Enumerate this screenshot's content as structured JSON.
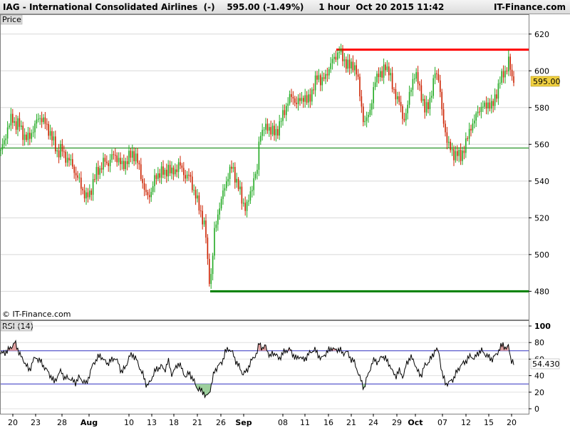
{
  "header": {
    "title": "IAG - International Consolidated Airlines  (-)    595.00 (-1.49%)     1 hour  Oct 20 2015 11:42",
    "brand": "IT-Finance.com"
  },
  "chart_data": [
    {
      "type": "candlestick",
      "panel_label": "Price",
      "copyright": "© IT-Finance.com",
      "ylim": [
        465,
        630
      ],
      "y_ticks": [
        480,
        500,
        520,
        540,
        560,
        580,
        600,
        620
      ],
      "last_price_label": "595.00",
      "horizontal_lines": [
        {
          "name": "resistance",
          "value": 611.5,
          "color": "#ff0000"
        },
        {
          "name": "support",
          "value": 558,
          "color": "#008000"
        },
        {
          "name": "low",
          "value": 480,
          "color": "#008000"
        }
      ],
      "colors": {
        "up": "#22aa22",
        "down": "#cc2200"
      },
      "path_points": [
        [
          0,
          557
        ],
        [
          5,
          561
        ],
        [
          10,
          570
        ],
        [
          15,
          574
        ],
        [
          20,
          571
        ],
        [
          25,
          572
        ],
        [
          30,
          566
        ],
        [
          35,
          564
        ],
        [
          40,
          563
        ],
        [
          45,
          568
        ],
        [
          50,
          572
        ],
        [
          55,
          575
        ],
        [
          60,
          573
        ],
        [
          65,
          569
        ],
        [
          70,
          566
        ],
        [
          75,
          560
        ],
        [
          80,
          555
        ],
        [
          85,
          558
        ],
        [
          90,
          553
        ],
        [
          95,
          552
        ],
        [
          100,
          549
        ],
        [
          105,
          544
        ],
        [
          110,
          540
        ],
        [
          115,
          535
        ],
        [
          120,
          531
        ],
        [
          125,
          533
        ],
        [
          130,
          540
        ],
        [
          135,
          545
        ],
        [
          140,
          547
        ],
        [
          145,
          551
        ],
        [
          150,
          549
        ],
        [
          155,
          553
        ],
        [
          160,
          554
        ],
        [
          165,
          552
        ],
        [
          170,
          548
        ],
        [
          175,
          550
        ],
        [
          180,
          553
        ],
        [
          185,
          555
        ],
        [
          190,
          553
        ],
        [
          195,
          546
        ],
        [
          200,
          538
        ],
        [
          205,
          531
        ],
        [
          210,
          533
        ],
        [
          215,
          540
        ],
        [
          220,
          543
        ],
        [
          225,
          546
        ],
        [
          230,
          543
        ],
        [
          235,
          548
        ],
        [
          240,
          544
        ],
        [
          245,
          546
        ],
        [
          250,
          549
        ],
        [
          255,
          546
        ],
        [
          260,
          542
        ],
        [
          265,
          543
        ],
        [
          270,
          536
        ],
        [
          275,
          530
        ],
        [
          280,
          524
        ],
        [
          285,
          517
        ],
        [
          288,
          510
        ],
        [
          290,
          497
        ],
        [
          294,
          483
        ],
        [
          297,
          497
        ],
        [
          300,
          512
        ],
        [
          305,
          523
        ],
        [
          310,
          530
        ],
        [
          315,
          538
        ],
        [
          320,
          544
        ],
        [
          325,
          548
        ],
        [
          330,
          541
        ],
        [
          335,
          535
        ],
        [
          340,
          528
        ],
        [
          345,
          525
        ],
        [
          350,
          533
        ],
        [
          355,
          541
        ],
        [
          360,
          545
        ],
        [
          363,
          566
        ],
        [
          370,
          568
        ],
        [
          375,
          570
        ],
        [
          380,
          567
        ],
        [
          385,
          566
        ],
        [
          390,
          569
        ],
        [
          395,
          575
        ],
        [
          400,
          580
        ],
        [
          405,
          585
        ],
        [
          410,
          586
        ],
        [
          415,
          582
        ],
        [
          420,
          584
        ],
        [
          425,
          586
        ],
        [
          430,
          583
        ],
        [
          435,
          587
        ],
        [
          440,
          592
        ],
        [
          445,
          598
        ],
        [
          450,
          594
        ],
        [
          455,
          596
        ],
        [
          460,
          601
        ],
        [
          465,
          605
        ],
        [
          470,
          608
        ],
        [
          475,
          611
        ],
        [
          480,
          607
        ],
        [
          485,
          604
        ],
        [
          490,
          602
        ],
        [
          495,
          604
        ],
        [
          500,
          598
        ],
        [
          505,
          585
        ],
        [
          510,
          570
        ],
        [
          515,
          575
        ],
        [
          520,
          582
        ],
        [
          525,
          593
        ],
        [
          530,
          600
        ],
        [
          535,
          597
        ],
        [
          540,
          603
        ],
        [
          545,
          600
        ],
        [
          550,
          590
        ],
        [
          555,
          587
        ],
        [
          560,
          582
        ],
        [
          565,
          573
        ],
        [
          570,
          578
        ],
        [
          575,
          590
        ],
        [
          580,
          598
        ],
        [
          585,
          595
        ],
        [
          590,
          588
        ],
        [
          595,
          578
        ],
        [
          600,
          582
        ],
        [
          605,
          588
        ],
        [
          610,
          600
        ],
        [
          615,
          596
        ],
        [
          620,
          574
        ],
        [
          625,
          565
        ],
        [
          630,
          558
        ],
        [
          635,
          554
        ],
        [
          640,
          556
        ],
        [
          645,
          552
        ],
        [
          650,
          558
        ],
        [
          655,
          563
        ],
        [
          660,
          570
        ],
        [
          665,
          573
        ],
        [
          670,
          578
        ],
        [
          675,
          581
        ],
        [
          680,
          580
        ],
        [
          685,
          583
        ],
        [
          690,
          580
        ],
        [
          695,
          587
        ],
        [
          700,
          594
        ],
        [
          705,
          598
        ],
        [
          710,
          601
        ],
        [
          713,
          606
        ],
        [
          716,
          598
        ],
        [
          720,
          595
        ]
      ]
    },
    {
      "type": "line",
      "panel_label": "RSI (14)",
      "ylim": [
        0,
        100
      ],
      "y_ticks": [
        0,
        20,
        40,
        60,
        80,
        100
      ],
      "reference_lines": [
        30,
        70
      ],
      "last_value_label": "54.430",
      "path_points": [
        [
          0,
          66
        ],
        [
          5,
          68
        ],
        [
          10,
          70
        ],
        [
          15,
          75
        ],
        [
          20,
          80
        ],
        [
          25,
          70
        ],
        [
          30,
          60
        ],
        [
          35,
          55
        ],
        [
          40,
          45
        ],
        [
          45,
          58
        ],
        [
          50,
          62
        ],
        [
          55,
          58
        ],
        [
          60,
          52
        ],
        [
          65,
          46
        ],
        [
          70,
          40
        ],
        [
          75,
          32
        ],
        [
          80,
          40
        ],
        [
          85,
          46
        ],
        [
          90,
          36
        ],
        [
          95,
          38
        ],
        [
          100,
          34
        ],
        [
          105,
          32
        ],
        [
          110,
          38
        ],
        [
          115,
          34
        ],
        [
          120,
          30
        ],
        [
          125,
          42
        ],
        [
          130,
          55
        ],
        [
          135,
          60
        ],
        [
          140,
          65
        ],
        [
          145,
          58
        ],
        [
          150,
          55
        ],
        [
          155,
          58
        ],
        [
          160,
          62
        ],
        [
          165,
          55
        ],
        [
          170,
          44
        ],
        [
          175,
          50
        ],
        [
          180,
          62
        ],
        [
          185,
          66
        ],
        [
          190,
          60
        ],
        [
          195,
          50
        ],
        [
          200,
          40
        ],
        [
          205,
          28
        ],
        [
          210,
          32
        ],
        [
          215,
          44
        ],
        [
          220,
          48
        ],
        [
          225,
          52
        ],
        [
          230,
          46
        ],
        [
          235,
          58
        ],
        [
          240,
          42
        ],
        [
          245,
          48
        ],
        [
          250,
          56
        ],
        [
          255,
          46
        ],
        [
          260,
          38
        ],
        [
          265,
          44
        ],
        [
          270,
          35
        ],
        [
          275,
          26
        ],
        [
          280,
          22
        ],
        [
          285,
          20
        ],
        [
          288,
          14
        ],
        [
          292,
          18
        ],
        [
          296,
          30
        ],
        [
          300,
          45
        ],
        [
          305,
          52
        ],
        [
          310,
          55
        ],
        [
          315,
          68
        ],
        [
          320,
          73
        ],
        [
          325,
          68
        ],
        [
          330,
          58
        ],
        [
          335,
          50
        ],
        [
          340,
          42
        ],
        [
          345,
          45
        ],
        [
          350,
          55
        ],
        [
          355,
          62
        ],
        [
          360,
          68
        ],
        [
          363,
          80
        ],
        [
          368,
          72
        ],
        [
          372,
          76
        ],
        [
          378,
          62
        ],
        [
          382,
          68
        ],
        [
          386,
          66
        ],
        [
          390,
          60
        ],
        [
          395,
          66
        ],
        [
          400,
          70
        ],
        [
          405,
          72
        ],
        [
          410,
          66
        ],
        [
          415,
          60
        ],
        [
          420,
          64
        ],
        [
          425,
          58
        ],
        [
          430,
          64
        ],
        [
          435,
          68
        ],
        [
          440,
          72
        ],
        [
          445,
          66
        ],
        [
          450,
          60
        ],
        [
          455,
          66
        ],
        [
          460,
          70
        ],
        [
          465,
          74
        ],
        [
          470,
          70
        ],
        [
          475,
          73
        ],
        [
          480,
          66
        ],
        [
          485,
          70
        ],
        [
          490,
          62
        ],
        [
          495,
          58
        ],
        [
          500,
          48
        ],
        [
          505,
          35
        ],
        [
          510,
          25
        ],
        [
          515,
          40
        ],
        [
          520,
          52
        ],
        [
          525,
          60
        ],
        [
          530,
          55
        ],
        [
          535,
          65
        ],
        [
          540,
          60
        ],
        [
          545,
          55
        ],
        [
          550,
          44
        ],
        [
          555,
          40
        ],
        [
          560,
          46
        ],
        [
          565,
          38
        ],
        [
          570,
          56
        ],
        [
          575,
          62
        ],
        [
          580,
          58
        ],
        [
          585,
          45
        ],
        [
          590,
          40
        ],
        [
          595,
          52
        ],
        [
          600,
          56
        ],
        [
          605,
          62
        ],
        [
          610,
          72
        ],
        [
          615,
          68
        ],
        [
          620,
          40
        ],
        [
          625,
          30
        ],
        [
          630,
          32
        ],
        [
          635,
          36
        ],
        [
          640,
          44
        ],
        [
          645,
          52
        ],
        [
          650,
          55
        ],
        [
          655,
          60
        ],
        [
          660,
          64
        ],
        [
          665,
          60
        ],
        [
          670,
          68
        ],
        [
          675,
          70
        ],
        [
          680,
          66
        ],
        [
          685,
          62
        ],
        [
          690,
          60
        ],
        [
          695,
          65
        ],
        [
          700,
          72
        ],
        [
          705,
          78
        ],
        [
          710,
          72
        ],
        [
          713,
          76
        ],
        [
          716,
          60
        ],
        [
          720,
          54
        ]
      ]
    }
  ],
  "x_axis": {
    "labels": [
      {
        "text": "20",
        "pos": 18,
        "bold": false
      },
      {
        "text": "23",
        "pos": 50,
        "bold": false
      },
      {
        "text": "28",
        "pos": 87,
        "bold": false
      },
      {
        "text": "Aug",
        "pos": 125,
        "bold": true
      },
      {
        "text": "10",
        "pos": 181,
        "bold": false
      },
      {
        "text": "13",
        "pos": 213,
        "bold": false
      },
      {
        "text": "18",
        "pos": 244,
        "bold": false
      },
      {
        "text": "21",
        "pos": 277,
        "bold": false
      },
      {
        "text": "26",
        "pos": 310,
        "bold": false
      },
      {
        "text": "Sep",
        "pos": 342,
        "bold": true
      },
      {
        "text": "08",
        "pos": 397,
        "bold": false
      },
      {
        "text": "11",
        "pos": 428,
        "bold": false
      },
      {
        "text": "16",
        "pos": 461,
        "bold": false
      },
      {
        "text": "21",
        "pos": 493,
        "bold": false
      },
      {
        "text": "24",
        "pos": 524,
        "bold": false
      },
      {
        "text": "29",
        "pos": 557,
        "bold": false
      },
      {
        "text": "Oct",
        "pos": 583,
        "bold": true
      },
      {
        "text": "07",
        "pos": 621,
        "bold": false
      },
      {
        "text": "12",
        "pos": 654,
        "bold": false
      },
      {
        "text": "15",
        "pos": 686,
        "bold": false
      },
      {
        "text": "20",
        "pos": 718,
        "bold": false
      }
    ]
  }
}
